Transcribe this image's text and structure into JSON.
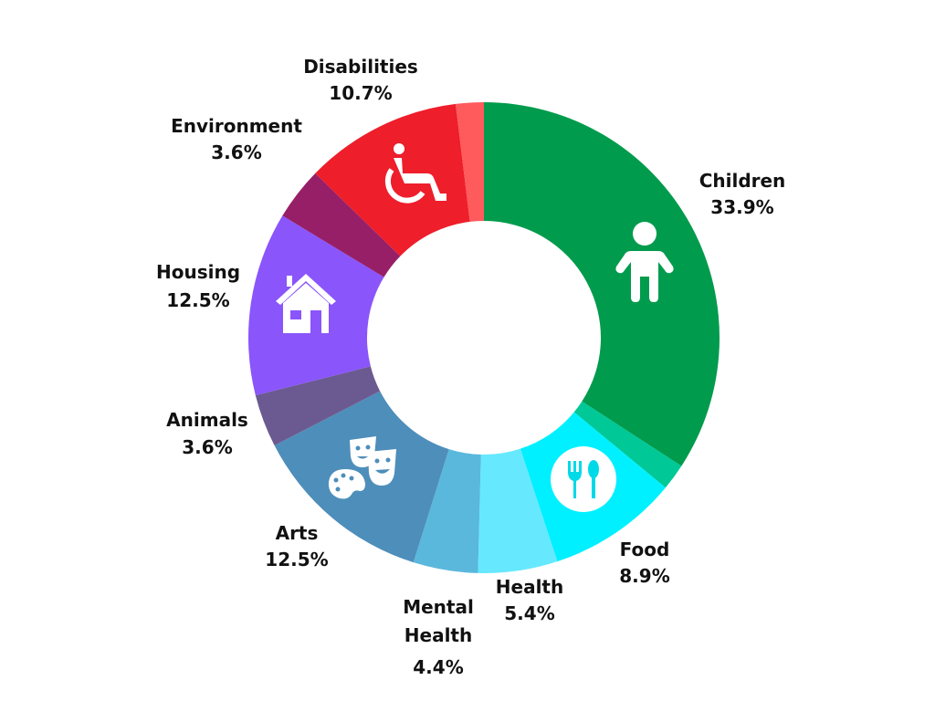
{
  "chart_data": {
    "type": "pie",
    "title": "",
    "slices": [
      {
        "label": "Children",
        "value": 33.9,
        "value_label": "33.9%",
        "color": "#009B4C",
        "icon": "child-icon"
      },
      {
        "label": "",
        "value": 1.8,
        "value_label": "",
        "color": "#00C896",
        "icon": ""
      },
      {
        "label": "Food",
        "value": 8.9,
        "value_label": "8.9%",
        "color": "#00F0FF",
        "icon": "utensils-icon"
      },
      {
        "label": "Health",
        "value": 5.4,
        "value_label": "5.4%",
        "color": "#66E8FF",
        "icon": ""
      },
      {
        "label": "Mental Health",
        "value": 4.4,
        "value_label": "4.4%",
        "color": "#5AB8DC",
        "icon": ""
      },
      {
        "label": "Arts",
        "value": 12.5,
        "value_label": "12.5%",
        "color": "#4E8EBA",
        "icon": "palette-masks-icon"
      },
      {
        "label": "Animals",
        "value": 3.6,
        "value_label": "3.6%",
        "color": "#6B5A91",
        "icon": ""
      },
      {
        "label": "Housing",
        "value": 12.5,
        "value_label": "12.5%",
        "color": "#8A55FB",
        "icon": "house-icon"
      },
      {
        "label": "Environment",
        "value": 3.6,
        "value_label": "3.6%",
        "color": "#971F67",
        "icon": ""
      },
      {
        "label": "Disabilities",
        "value": 10.7,
        "value_label": "10.7%",
        "color": "#EE1E2B",
        "icon": "wheelchair-icon"
      },
      {
        "label": "",
        "value": 1.9,
        "value_label": "",
        "color": "#FF5A5C",
        "icon": ""
      }
    ],
    "labels": {
      "children_name": "Children",
      "children_pct": "33.9%",
      "food_name": "Food",
      "food_pct": "8.9%",
      "health_name": "Health",
      "health_pct": "5.4%",
      "mental_line1": "Mental",
      "mental_line2": "Health",
      "mental_pct": "4.4%",
      "arts_name": "Arts",
      "arts_pct": "12.5%",
      "animals_name": "Animals",
      "animals_pct": "3.6%",
      "housing_name": "Housing",
      "housing_pct": "12.5%",
      "environment_name": "Environment",
      "environment_pct": "3.6%",
      "disabilities_name": "Disabilities",
      "disabilities_pct": "10.7%"
    },
    "legend": "none"
  }
}
